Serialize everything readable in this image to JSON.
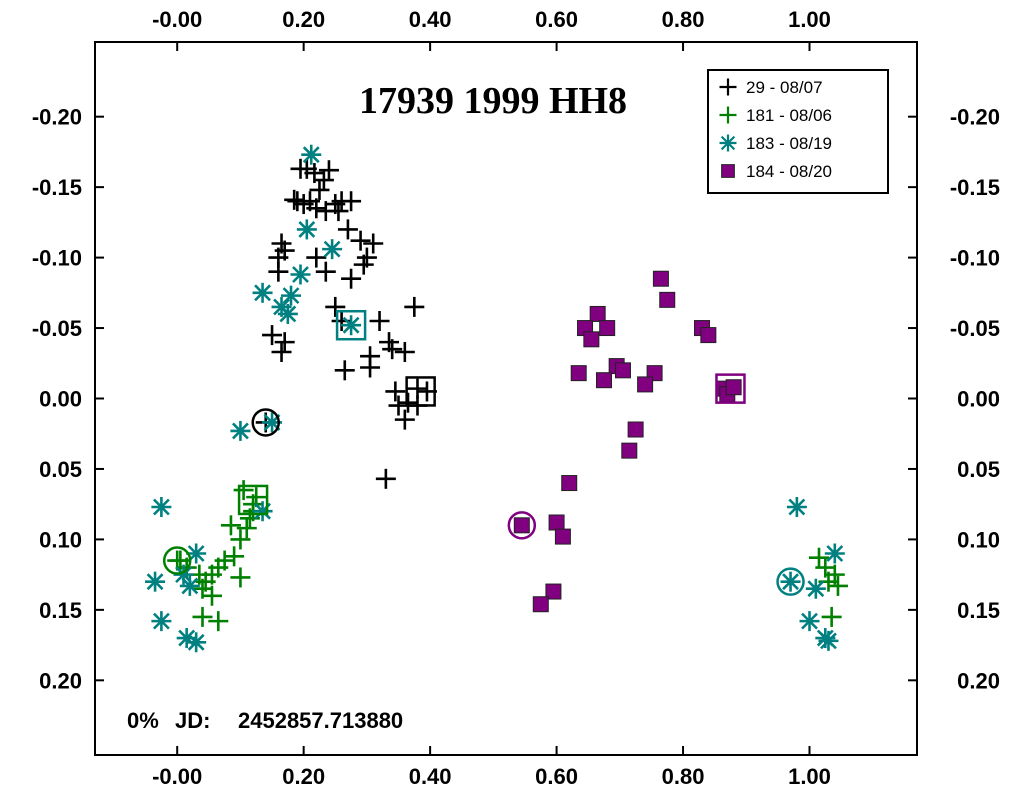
{
  "chart_data": {
    "type": "scatter",
    "title": "17939 1999 HH8",
    "annotation": {
      "percent": "0%",
      "jd_label": "JD:",
      "jd_value": "2452857.713880"
    },
    "x_ticks": [
      "-0.00",
      "0.20",
      "0.40",
      "0.60",
      "0.80",
      "1.00"
    ],
    "x_tick_values": [
      0.0,
      0.2,
      0.4,
      0.6,
      0.8,
      1.0
    ],
    "y_ticks": [
      "-0.20",
      "-0.15",
      "-0.10",
      "-0.05",
      "0.00",
      "0.05",
      "0.10",
      "0.15",
      "0.20"
    ],
    "y_tick_values": [
      -0.2,
      -0.15,
      -0.1,
      -0.05,
      0.0,
      0.05,
      0.1,
      0.15,
      0.2
    ],
    "xlim": [
      -0.13,
      1.17
    ],
    "ylim": [
      -0.253,
      0.253
    ],
    "y_inverted": true,
    "grid": false,
    "legend_position": "top-right",
    "legend": [
      {
        "label": "29 - 08/07",
        "color": "#000000",
        "marker": "plus"
      },
      {
        "label": "181 - 08/06",
        "color": "#008000",
        "marker": "plus"
      },
      {
        "label": "183 - 08/19",
        "color": "#008080",
        "marker": "asterisk"
      },
      {
        "label": "184 - 08/20",
        "color": "#800080",
        "marker": "square"
      }
    ],
    "series": [
      {
        "name": "29 - 08/07",
        "color": "#000000",
        "marker": "plus",
        "points": [
          [
            0.195,
            -0.163
          ],
          [
            0.205,
            -0.163
          ],
          [
            0.217,
            -0.16
          ],
          [
            0.225,
            -0.148
          ],
          [
            0.232,
            -0.155
          ],
          [
            0.24,
            -0.162
          ],
          [
            0.19,
            -0.14
          ],
          [
            0.2,
            -0.138
          ],
          [
            0.21,
            -0.14
          ],
          [
            0.22,
            -0.135
          ],
          [
            0.235,
            -0.133
          ],
          [
            0.25,
            -0.138
          ],
          [
            0.26,
            -0.14
          ],
          [
            0.275,
            -0.14
          ],
          [
            0.185,
            -0.141
          ],
          [
            0.255,
            -0.133
          ],
          [
            0.27,
            -0.12
          ],
          [
            0.29,
            -0.112
          ],
          [
            0.31,
            -0.11
          ],
          [
            0.165,
            -0.11
          ],
          [
            0.17,
            -0.105
          ],
          [
            0.16,
            -0.1
          ],
          [
            0.22,
            -0.1
          ],
          [
            0.235,
            -0.09
          ],
          [
            0.3,
            -0.1
          ],
          [
            0.295,
            -0.095
          ],
          [
            0.275,
            -0.085
          ],
          [
            0.16,
            -0.09
          ],
          [
            0.25,
            -0.065
          ],
          [
            0.26,
            -0.055
          ],
          [
            0.375,
            -0.065
          ],
          [
            0.32,
            -0.055
          ],
          [
            0.335,
            -0.04
          ],
          [
            0.34,
            -0.035
          ],
          [
            0.36,
            -0.033
          ],
          [
            0.305,
            -0.03
          ],
          [
            0.15,
            -0.045
          ],
          [
            0.17,
            -0.04
          ],
          [
            0.165,
            -0.033
          ],
          [
            0.265,
            -0.02
          ],
          [
            0.305,
            -0.022
          ],
          [
            0.345,
            -0.005
          ],
          [
            0.35,
            0.005
          ],
          [
            0.36,
            0.015
          ],
          [
            0.365,
            0.003
          ],
          [
            0.38,
            -0.007
          ],
          [
            0.38,
            0.005
          ],
          [
            0.33,
            0.057
          ],
          [
            0.395,
            -0.005
          ],
          [
            0.14,
            0.017
          ]
        ]
      },
      {
        "name": "181 - 08/06",
        "color": "#008000",
        "marker": "plus",
        "points": [
          [
            0.105,
            0.065
          ],
          [
            0.125,
            0.07
          ],
          [
            0.12,
            0.08
          ],
          [
            0.115,
            0.085
          ],
          [
            0.11,
            0.092
          ],
          [
            0.085,
            0.09
          ],
          [
            0.1,
            0.1
          ],
          [
            0.09,
            0.112
          ],
          [
            0.075,
            0.115
          ],
          [
            0.065,
            0.12
          ],
          [
            0.055,
            0.125
          ],
          [
            0.045,
            0.13
          ],
          [
            0.04,
            0.135
          ],
          [
            0.055,
            0.14
          ],
          [
            0.035,
            0.125
          ],
          [
            0.015,
            0.12
          ],
          [
            0.005,
            0.115
          ],
          [
            0.1,
            0.127
          ],
          [
            0.04,
            0.155
          ],
          [
            0.065,
            0.158
          ],
          [
            0.12,
            0.075
          ],
          [
            0.0,
            0.115
          ],
          [
            1.015,
            0.113
          ],
          [
            1.025,
            0.12
          ],
          [
            1.04,
            0.125
          ],
          [
            1.045,
            0.133
          ],
          [
            1.03,
            0.13
          ],
          [
            1.035,
            0.155
          ]
        ]
      },
      {
        "name": "183 - 08/19",
        "color": "#008080",
        "marker": "asterisk",
        "points": [
          [
            0.212,
            -0.173
          ],
          [
            0.205,
            -0.12
          ],
          [
            0.245,
            -0.106
          ],
          [
            0.195,
            -0.088
          ],
          [
            0.18,
            -0.073
          ],
          [
            0.165,
            -0.065
          ],
          [
            0.175,
            -0.06
          ],
          [
            0.135,
            -0.075
          ],
          [
            0.275,
            -0.052
          ],
          [
            0.15,
            0.017
          ],
          [
            0.1,
            0.023
          ],
          [
            -0.025,
            0.077
          ],
          [
            0.135,
            0.08
          ],
          [
            0.03,
            0.11
          ],
          [
            0.01,
            0.125
          ],
          [
            0.02,
            0.133
          ],
          [
            -0.035,
            0.13
          ],
          [
            -0.025,
            0.158
          ],
          [
            0.015,
            0.17
          ],
          [
            0.03,
            0.173
          ],
          [
            0.98,
            0.077
          ],
          [
            1.04,
            0.11
          ],
          [
            1.01,
            0.135
          ],
          [
            1.0,
            0.158
          ],
          [
            1.025,
            0.17
          ],
          [
            1.03,
            0.172
          ],
          [
            0.97,
            0.13
          ]
        ]
      },
      {
        "name": "184 - 08/20",
        "color": "#800080",
        "marker": "square",
        "points": [
          [
            0.765,
            -0.085
          ],
          [
            0.775,
            -0.07
          ],
          [
            0.665,
            -0.06
          ],
          [
            0.645,
            -0.05
          ],
          [
            0.68,
            -0.05
          ],
          [
            0.655,
            -0.042
          ],
          [
            0.83,
            -0.05
          ],
          [
            0.84,
            -0.045
          ],
          [
            0.635,
            -0.018
          ],
          [
            0.695,
            -0.023
          ],
          [
            0.705,
            -0.02
          ],
          [
            0.755,
            -0.018
          ],
          [
            0.675,
            -0.013
          ],
          [
            0.74,
            -0.01
          ],
          [
            0.865,
            -0.007
          ],
          [
            0.87,
            -0.003
          ],
          [
            0.88,
            -0.008
          ],
          [
            0.725,
            0.022
          ],
          [
            0.715,
            0.037
          ],
          [
            0.62,
            0.06
          ],
          [
            0.6,
            0.088
          ],
          [
            0.61,
            0.098
          ],
          [
            0.545,
            0.09
          ],
          [
            0.595,
            0.137
          ],
          [
            0.575,
            0.146
          ]
        ]
      }
    ],
    "highlights": [
      {
        "shape": "square",
        "color": "#000000",
        "x": 0.385,
        "y": -0.005
      },
      {
        "shape": "square",
        "color": "#008000",
        "x": 0.12,
        "y": 0.072
      },
      {
        "shape": "square",
        "color": "#008080",
        "x": 0.275,
        "y": -0.052
      },
      {
        "shape": "square",
        "color": "#800080",
        "x": 0.875,
        "y": -0.007
      },
      {
        "shape": "circle",
        "color": "#000000",
        "x": 0.14,
        "y": 0.017
      },
      {
        "shape": "circle",
        "color": "#008000",
        "x": 0.0,
        "y": 0.115
      },
      {
        "shape": "circle",
        "color": "#800080",
        "x": 0.545,
        "y": 0.09
      },
      {
        "shape": "circle",
        "color": "#008080",
        "x": 0.97,
        "y": 0.13
      }
    ]
  }
}
